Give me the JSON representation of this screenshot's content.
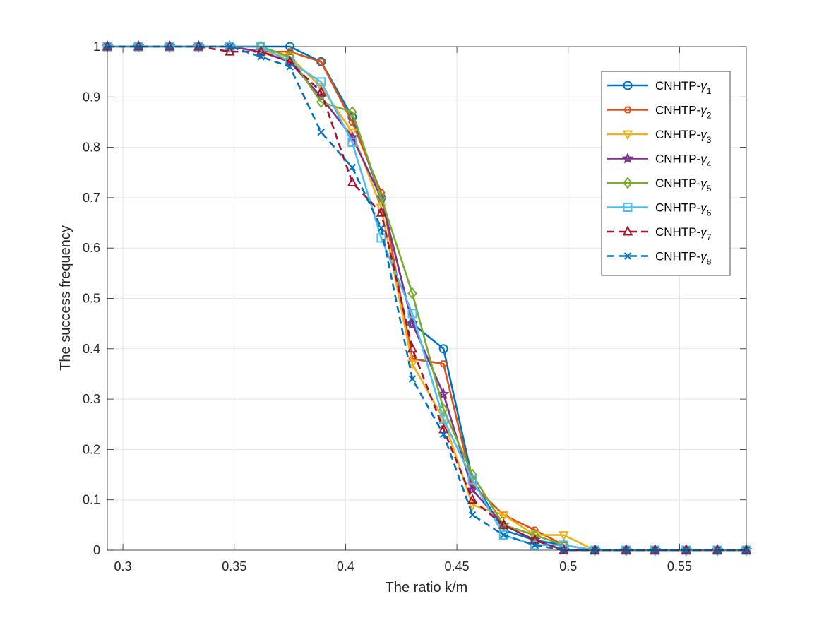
{
  "chart_data": {
    "type": "line",
    "title": "",
    "xlabel": "The ratio k/m",
    "ylabel": "The success frequency",
    "xlim": [
      0.293,
      0.58
    ],
    "ylim": [
      0,
      1
    ],
    "xticks": [
      0.3,
      0.35,
      0.4,
      0.45,
      0.5,
      0.55
    ],
    "xtick_labels": [
      "0.3",
      "0.35",
      "0.4",
      "0.45",
      "0.5",
      "0.55"
    ],
    "yticks": [
      0,
      0.1,
      0.2,
      0.3,
      0.4,
      0.5,
      0.6,
      0.7,
      0.8,
      0.9,
      1
    ],
    "ytick_labels": [
      "0",
      "0.1",
      "0.2",
      "0.3",
      "0.4",
      "0.5",
      "0.6",
      "0.7",
      "0.8",
      "0.9",
      "1"
    ],
    "grid": true,
    "legend_position": "top-right",
    "x": [
      0.293,
      0.307,
      0.321,
      0.334,
      0.348,
      0.362,
      0.375,
      0.389,
      0.403,
      0.416,
      0.43,
      0.444,
      0.457,
      0.471,
      0.485,
      0.498,
      0.512,
      0.526,
      0.539,
      0.553,
      0.567,
      0.58
    ],
    "series": [
      {
        "name": "CNHTP-",
        "subscript": "1",
        "color": "#0072BD",
        "marker": "circle",
        "dash": "solid",
        "values": [
          1,
          1,
          1,
          1,
          1,
          1,
          1,
          0.97,
          0.86,
          0.7,
          0.45,
          0.4,
          0.14,
          0.04,
          0.02,
          0.01,
          0,
          0,
          0,
          0,
          0,
          0
        ]
      },
      {
        "name": "CNHTP-",
        "subscript": "2",
        "color": "#D95319",
        "marker": "hexagon",
        "dash": "solid",
        "values": [
          1,
          1,
          1,
          1,
          1,
          0.99,
          0.99,
          0.97,
          0.85,
          0.71,
          0.38,
          0.37,
          0.13,
          0.07,
          0.04,
          0.01,
          0,
          0,
          0,
          0,
          0,
          0
        ]
      },
      {
        "name": "CNHTP-",
        "subscript": "3",
        "color": "#EDB120",
        "marker": "triangle-down",
        "dash": "solid",
        "values": [
          1,
          1,
          1,
          1,
          1,
          0.99,
          0.98,
          0.92,
          0.83,
          0.68,
          0.37,
          0.26,
          0.09,
          0.07,
          0.03,
          0.03,
          0,
          0,
          0,
          0,
          0,
          0
        ]
      },
      {
        "name": "CNHTP-",
        "subscript": "4",
        "color": "#7E2F8E",
        "marker": "star",
        "dash": "solid",
        "values": [
          1,
          1,
          1,
          1,
          1,
          0.99,
          0.97,
          0.9,
          0.82,
          0.7,
          0.45,
          0.31,
          0.12,
          0.05,
          0.02,
          0,
          0,
          0,
          0,
          0,
          0,
          0
        ]
      },
      {
        "name": "CNHTP-",
        "subscript": "5",
        "color": "#77AC30",
        "marker": "diamond",
        "dash": "solid",
        "values": [
          1,
          1,
          1,
          1,
          1,
          1,
          0.98,
          0.89,
          0.87,
          0.7,
          0.51,
          0.28,
          0.15,
          0.05,
          0.03,
          0.01,
          0,
          0,
          0,
          0,
          0,
          0
        ]
      },
      {
        "name": "CNHTP-",
        "subscript": "6",
        "color": "#4DBEEE",
        "marker": "square",
        "dash": "solid",
        "values": [
          1,
          1,
          1,
          1,
          1,
          1,
          0.97,
          0.93,
          0.81,
          0.62,
          0.47,
          0.26,
          0.14,
          0.03,
          0.01,
          0.01,
          0,
          0,
          0,
          0,
          0,
          0
        ]
      },
      {
        "name": "CNHTP-",
        "subscript": "7",
        "color": "#A2142F",
        "marker": "triangle-up",
        "dash": "dashed",
        "values": [
          1,
          1,
          1,
          1,
          0.99,
          0.99,
          0.97,
          0.91,
          0.73,
          0.67,
          0.4,
          0.24,
          0.1,
          0.05,
          0.02,
          0,
          0,
          0,
          0,
          0,
          0,
          0
        ]
      },
      {
        "name": "CNHTP-",
        "subscript": "8",
        "color": "#0072BD",
        "marker": "x",
        "dash": "dashed",
        "values": [
          1,
          1,
          1,
          1,
          1,
          0.98,
          0.96,
          0.83,
          0.76,
          0.64,
          0.34,
          0.23,
          0.07,
          0.03,
          0.01,
          0,
          0,
          0,
          0,
          0,
          0,
          0
        ]
      }
    ],
    "legend_greek_symbol": "γ"
  }
}
